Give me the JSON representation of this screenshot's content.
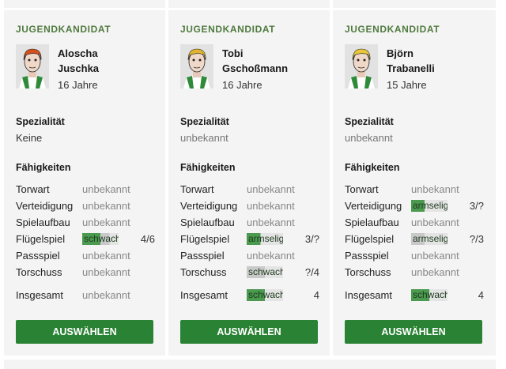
{
  "skill_scale_max": 8,
  "colors": {
    "accent": "#2a8234",
    "current_fill": "#4b9a4f",
    "potential_fill": "#c9c9c9",
    "kicker": "#4f7a3e"
  },
  "cards": [
    {
      "kicker": "JUGENDKANDIDAT",
      "first": "Aloscha",
      "last": "Juschka",
      "age": "16 Jahre",
      "hair": "#d2501e",
      "spec_label": "Spezialität",
      "spec": "Keine",
      "skills_label": "Fähigkeiten",
      "skills": [
        {
          "label": "Torwart",
          "value": "unbekannt"
        },
        {
          "label": "Verteidigung",
          "value": "unbekannt"
        },
        {
          "label": "Spielaufbau",
          "value": "unbekannt"
        },
        {
          "label": "Flügelspiel",
          "value": "schwach",
          "current": 4,
          "potential": 6,
          "rating": "4/6"
        },
        {
          "label": "Passspiel",
          "value": "unbekannt"
        },
        {
          "label": "Torschuss",
          "value": "unbekannt"
        }
      ],
      "total": {
        "label": "Insgesamt",
        "value": "unbekannt"
      },
      "button": "AUSWÄHLEN"
    },
    {
      "kicker": "JUGENDKANDIDAT",
      "first": "Tobi",
      "last": "Gschoßmann",
      "age": "16 Jahre",
      "hair": "#e0b430",
      "spec_label": "Spezialität",
      "spec": "unbekannt",
      "skills_label": "Fähigkeiten",
      "skills": [
        {
          "label": "Torwart",
          "value": "unbekannt"
        },
        {
          "label": "Verteidigung",
          "value": "unbekannt"
        },
        {
          "label": "Spielaufbau",
          "value": "unbekannt"
        },
        {
          "label": "Flügelspiel",
          "value": "armselig",
          "current": 3,
          "potential": null,
          "rating": "3/?"
        },
        {
          "label": "Passspiel",
          "value": "unbekannt"
        },
        {
          "label": "Torschuss",
          "value": "schwach",
          "current": null,
          "potential": 4,
          "rating": "?/4"
        }
      ],
      "total": {
        "label": "Insgesamt",
        "value": "schwach",
        "current": 4,
        "potential": null,
        "rating": "4"
      },
      "button": "AUSWÄHLEN"
    },
    {
      "kicker": "JUGENDKANDIDAT",
      "first": "Björn",
      "last": "Trabanelli",
      "age": "15 Jahre",
      "hair": "#e8c838",
      "spec_label": "Spezialität",
      "spec": "unbekannt",
      "skills_label": "Fähigkeiten",
      "skills": [
        {
          "label": "Torwart",
          "value": "unbekannt"
        },
        {
          "label": "Verteidigung",
          "value": "armselig",
          "current": 3,
          "potential": null,
          "rating": "3/?"
        },
        {
          "label": "Spielaufbau",
          "value": "unbekannt"
        },
        {
          "label": "Flügelspiel",
          "value": "armselig",
          "current": null,
          "potential": 3,
          "rating": "?/3"
        },
        {
          "label": "Passspiel",
          "value": "unbekannt"
        },
        {
          "label": "Torschuss",
          "value": "unbekannt"
        }
      ],
      "total": {
        "label": "Insgesamt",
        "value": "schwach",
        "current": 4,
        "potential": null,
        "rating": "4"
      },
      "button": "AUSWÄHLEN"
    }
  ]
}
